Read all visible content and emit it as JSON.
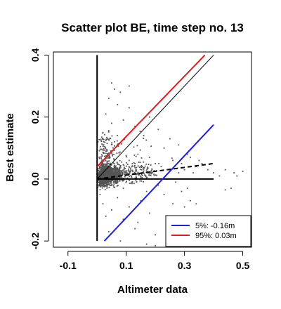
{
  "chart_data": {
    "type": "scatter",
    "title": "Scatter plot BE, time step no. 13",
    "xlabel": "Altimeter data",
    "ylabel": "Best estimate",
    "xlim": [
      -0.15,
      0.53
    ],
    "ylim": [
      -0.22,
      0.41
    ],
    "x_ticks": [
      -0.1,
      0.1,
      0.3,
      0.5
    ],
    "x_tick_labels": [
      "-0.1",
      "0.1",
      "0.3",
      "0.5"
    ],
    "y_ticks": [
      -0.2,
      0.0,
      0.2,
      0.4
    ],
    "y_tick_labels": [
      "-0.2",
      "0.0",
      "0.2",
      "0.4"
    ],
    "grid": false,
    "legend_position": "bottom-right",
    "lines": [
      {
        "name": "",
        "kind": "identity",
        "color": "#000000",
        "dash": "solid",
        "x": [
          0.0,
          0.4
        ],
        "y": [
          0.0,
          0.4
        ]
      },
      {
        "name": "",
        "kind": "zero-line",
        "color": "#000000",
        "dash": "solid",
        "x": [
          0.0,
          0.4
        ],
        "y": [
          0.0,
          0.0
        ]
      },
      {
        "name": "",
        "kind": "vertical-zero",
        "color": "#000000",
        "dash": "solid",
        "x": [
          0.0,
          0.0
        ],
        "y": [
          -0.2,
          0.4
        ]
      },
      {
        "name": "",
        "kind": "regression",
        "color": "#000000",
        "dash": "dashed",
        "x": [
          0.0,
          0.4
        ],
        "y": [
          0.0,
          0.05
        ]
      },
      {
        "name": "95%:  0.03m",
        "kind": "quantile",
        "color": "#e31a1c",
        "dash": "solid",
        "x": [
          0.0,
          0.37
        ],
        "y": [
          0.04,
          0.4
        ]
      },
      {
        "name": "5%: -0.16m",
        "kind": "quantile",
        "color": "#1f1fe0",
        "dash": "solid",
        "x": [
          0.025,
          0.4
        ],
        "y": [
          -0.2,
          0.175
        ]
      }
    ],
    "legend": [
      {
        "label": "5%: -0.16m",
        "color": "#1f1fe0"
      },
      {
        "label": "95%:  0.03m",
        "color": "#e31a1c"
      }
    ],
    "scatter_style": {
      "color": "#555555",
      "count": 1600
    },
    "points": [
      [
        0.01,
        0.0
      ],
      [
        0.02,
        0.01
      ],
      [
        0.03,
        -0.01
      ],
      [
        0.04,
        0.02
      ],
      [
        0.05,
        -0.02
      ],
      [
        0.06,
        0.03
      ],
      [
        0.07,
        0.0
      ],
      [
        0.08,
        0.04
      ],
      [
        0.09,
        -0.03
      ],
      [
        0.1,
        0.02
      ],
      [
        0.11,
        0.06
      ],
      [
        0.12,
        -0.01
      ],
      [
        0.13,
        0.05
      ],
      [
        0.14,
        0.08
      ],
      [
        0.15,
        0.01
      ],
      [
        0.16,
        0.03
      ],
      [
        0.17,
        -0.04
      ],
      [
        0.18,
        0.07
      ],
      [
        0.19,
        0.02
      ],
      [
        0.2,
        0.05
      ],
      [
        0.21,
        -0.02
      ],
      [
        0.22,
        0.04
      ],
      [
        0.23,
        0.1
      ],
      [
        0.24,
        0.0
      ],
      [
        0.25,
        0.03
      ],
      [
        0.26,
        0.06
      ],
      [
        0.27,
        -0.01
      ],
      [
        0.28,
        0.02
      ],
      [
        0.29,
        0.05
      ],
      [
        0.3,
        0.03
      ],
      [
        0.31,
        -0.03
      ],
      [
        0.32,
        0.07
      ],
      [
        0.33,
        0.02
      ],
      [
        0.34,
        0.04
      ],
      [
        0.35,
        0.0
      ],
      [
        0.36,
        0.05
      ],
      [
        0.38,
        0.03
      ],
      [
        0.4,
        0.02
      ],
      [
        0.42,
        0.01
      ],
      [
        0.44,
        0.03
      ],
      [
        0.47,
        0.02
      ],
      [
        0.48,
        0.01
      ],
      [
        0.5,
        0.025
      ],
      [
        0.46,
        -0.03
      ],
      [
        0.02,
        0.15
      ],
      [
        0.03,
        0.21
      ],
      [
        0.05,
        0.18
      ],
      [
        0.04,
        0.26
      ],
      [
        0.07,
        0.24
      ],
      [
        0.06,
        0.12
      ],
      [
        0.09,
        0.19
      ],
      [
        0.11,
        0.23
      ],
      [
        0.13,
        0.17
      ],
      [
        0.16,
        0.14
      ],
      [
        0.18,
        0.2
      ],
      [
        0.21,
        0.16
      ],
      [
        0.25,
        0.13
      ],
      [
        0.28,
        0.11
      ],
      [
        0.31,
        0.08
      ],
      [
        0.35,
        0.06
      ],
      [
        0.01,
        -0.05
      ],
      [
        0.02,
        -0.08
      ],
      [
        0.03,
        -0.12
      ],
      [
        0.05,
        -0.1
      ],
      [
        0.07,
        -0.06
      ],
      [
        0.09,
        -0.13
      ],
      [
        0.11,
        -0.09
      ],
      [
        0.13,
        -0.16
      ],
      [
        0.15,
        -0.07
      ],
      [
        0.18,
        -0.11
      ],
      [
        0.2,
        -0.18
      ],
      [
        0.23,
        -0.05
      ],
      [
        0.26,
        -0.08
      ],
      [
        0.29,
        -0.04
      ],
      [
        0.32,
        -0.07
      ],
      [
        0.04,
        -0.17
      ],
      [
        0.08,
        -0.2
      ],
      [
        0.14,
        -0.14
      ],
      [
        0.06,
        0.29
      ],
      [
        0.08,
        0.28
      ],
      [
        0.17,
        -0.21
      ],
      [
        0.2,
        -0.215
      ],
      [
        0.34,
        -0.08
      ],
      [
        0.3,
        -0.09
      ],
      [
        0.28,
        -0.12
      ],
      [
        0.11,
        0.3
      ],
      [
        0.05,
        0.31
      ],
      [
        0.44,
        -0.035
      ]
    ]
  }
}
